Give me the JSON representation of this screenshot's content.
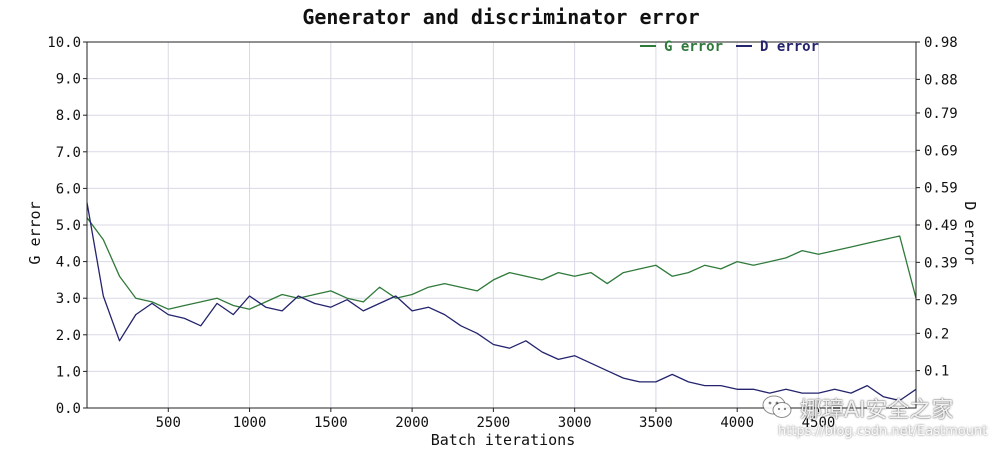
{
  "chart_data": {
    "type": "line",
    "title": "Generator and discriminator error",
    "xlabel": "Batch iterations",
    "ylabel_left": "G error",
    "ylabel_right": "D error",
    "xlim": [
      0,
      5100
    ],
    "ylim_left": [
      0,
      10.0
    ],
    "ylim_right": [
      0,
      0.98
    ],
    "x_ticks": [
      500,
      1000,
      1500,
      2000,
      2500,
      3000,
      3500,
      4000,
      4500
    ],
    "x_tick_labels": [
      "500",
      "1000",
      "1500",
      "2000",
      "2500",
      "3000",
      "3500",
      "4000",
      "4500"
    ],
    "y_ticks_left": [
      0,
      1,
      2,
      3,
      4,
      5,
      6,
      7,
      8,
      9,
      10
    ],
    "y_tick_labels_left": [
      "0.0",
      "1.0",
      "2.0",
      "3.0",
      "4.0",
      "5.0",
      "6.0",
      "7.0",
      "8.0",
      "9.0",
      "10.0"
    ],
    "y_ticks_right": [
      0.1,
      0.2,
      0.29,
      0.39,
      0.49,
      0.59,
      0.69,
      0.79,
      0.88,
      0.98
    ],
    "y_tick_labels_right": [
      "0.1",
      "0.2",
      "0.29",
      "0.39",
      "0.49",
      "0.59",
      "0.69",
      "0.79",
      "0.88",
      "0.98"
    ],
    "grid": true,
    "legend_position": "top-right",
    "series": [
      {
        "name": "G error",
        "axis": "left",
        "color": "#2f7a3a",
        "x": [
          0,
          100,
          200,
          300,
          400,
          500,
          600,
          700,
          800,
          900,
          1000,
          1100,
          1200,
          1300,
          1400,
          1500,
          1600,
          1700,
          1800,
          1900,
          2000,
          2100,
          2200,
          2300,
          2400,
          2500,
          2600,
          2700,
          2800,
          2900,
          3000,
          3100,
          3200,
          3300,
          3400,
          3500,
          3600,
          3700,
          3800,
          3900,
          4000,
          4100,
          4200,
          4300,
          4400,
          4500,
          4600,
          4700,
          4800,
          4900,
          5000,
          5100
        ],
        "values": [
          5.2,
          4.6,
          3.6,
          3.0,
          2.9,
          2.7,
          2.8,
          2.9,
          3.0,
          2.8,
          2.7,
          2.9,
          3.1,
          3.0,
          3.1,
          3.2,
          3.0,
          2.9,
          3.3,
          3.0,
          3.1,
          3.3,
          3.4,
          3.3,
          3.2,
          3.5,
          3.7,
          3.6,
          3.5,
          3.7,
          3.6,
          3.7,
          3.4,
          3.7,
          3.8,
          3.9,
          3.6,
          3.7,
          3.9,
          3.8,
          4.0,
          3.9,
          4.0,
          4.1,
          4.3,
          4.2,
          4.3,
          4.4,
          4.5,
          4.6,
          4.7,
          3.0
        ]
      },
      {
        "name": "D error",
        "axis": "right",
        "color": "#24246e",
        "x": [
          0,
          100,
          200,
          300,
          400,
          500,
          600,
          700,
          800,
          900,
          1000,
          1100,
          1200,
          1300,
          1400,
          1500,
          1600,
          1700,
          1800,
          1900,
          2000,
          2100,
          2200,
          2300,
          2400,
          2500,
          2600,
          2700,
          2800,
          2900,
          3000,
          3100,
          3200,
          3300,
          3400,
          3500,
          3600,
          3700,
          3800,
          3900,
          4000,
          4100,
          4200,
          4300,
          4400,
          4500,
          4600,
          4700,
          4800,
          4900,
          5000,
          5100
        ],
        "values": [
          0.55,
          0.3,
          0.18,
          0.25,
          0.28,
          0.25,
          0.24,
          0.22,
          0.28,
          0.25,
          0.3,
          0.27,
          0.26,
          0.3,
          0.28,
          0.27,
          0.29,
          0.26,
          0.28,
          0.3,
          0.26,
          0.27,
          0.25,
          0.22,
          0.2,
          0.17,
          0.16,
          0.18,
          0.15,
          0.13,
          0.14,
          0.12,
          0.1,
          0.08,
          0.07,
          0.07,
          0.09,
          0.07,
          0.06,
          0.06,
          0.05,
          0.05,
          0.04,
          0.05,
          0.04,
          0.04,
          0.05,
          0.04,
          0.06,
          0.03,
          0.02,
          0.05
        ]
      }
    ]
  },
  "watermark": {
    "line1": "娜璋AI安全之家",
    "line2": "https://blog.csdn.net/Eastmount"
  }
}
